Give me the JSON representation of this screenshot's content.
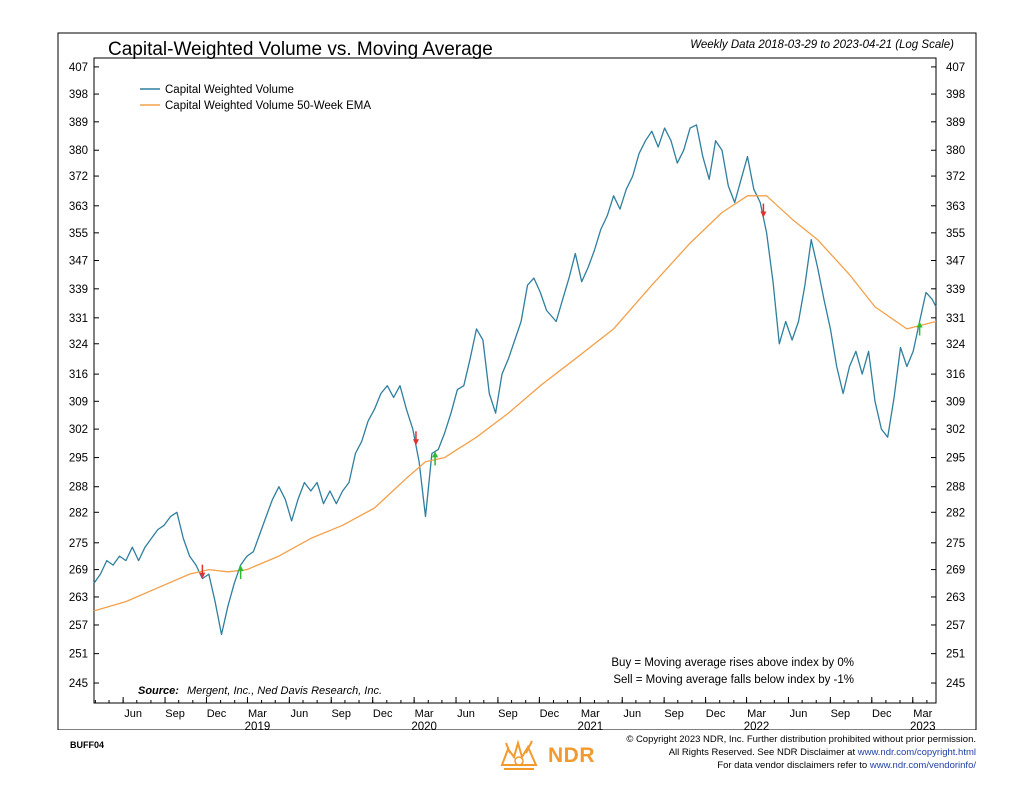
{
  "chart_data": {
    "type": "line",
    "title": "Capital-Weighted Volume vs. Moving Average",
    "subtitle": "Weekly Data 2018-03-29 to 2023-04-21 (Log Scale)",
    "scale": "log",
    "ylim": [
      241,
      410
    ],
    "x_range": [
      "2018-03-29",
      "2023-04-21"
    ],
    "y_ticks": [
      245,
      251,
      257,
      263,
      269,
      275,
      282,
      288,
      295,
      302,
      309,
      316,
      324,
      331,
      339,
      347,
      355,
      363,
      372,
      380,
      389,
      398,
      407
    ],
    "x_month_ticks": [
      {
        "date": "2018-06-01",
        "label": "Jun"
      },
      {
        "date": "2018-09-01",
        "label": "Sep"
      },
      {
        "date": "2018-12-01",
        "label": "Dec"
      },
      {
        "date": "2019-03-01",
        "label": "Mar"
      },
      {
        "date": "2019-06-01",
        "label": "Jun"
      },
      {
        "date": "2019-09-01",
        "label": "Sep"
      },
      {
        "date": "2019-12-01",
        "label": "Dec"
      },
      {
        "date": "2020-03-01",
        "label": "Mar"
      },
      {
        "date": "2020-06-01",
        "label": "Jun"
      },
      {
        "date": "2020-09-01",
        "label": "Sep"
      },
      {
        "date": "2020-12-01",
        "label": "Dec"
      },
      {
        "date": "2021-03-01",
        "label": "Mar"
      },
      {
        "date": "2021-06-01",
        "label": "Jun"
      },
      {
        "date": "2021-09-01",
        "label": "Sep"
      },
      {
        "date": "2021-12-01",
        "label": "Dec"
      },
      {
        "date": "2022-03-01",
        "label": "Mar"
      },
      {
        "date": "2022-06-01",
        "label": "Jun"
      },
      {
        "date": "2022-09-01",
        "label": "Sep"
      },
      {
        "date": "2022-12-01",
        "label": "Dec"
      },
      {
        "date": "2023-03-01",
        "label": "Mar"
      }
    ],
    "x_year_labels": [
      {
        "date": "2019-03-01",
        "label": "2019"
      },
      {
        "date": "2020-03-01",
        "label": "2020"
      },
      {
        "date": "2021-03-01",
        "label": "2021"
      },
      {
        "date": "2022-03-01",
        "label": "2022"
      },
      {
        "date": "2023-03-01",
        "label": "2023"
      }
    ],
    "series": [
      {
        "name": "Capital Weighted Volume",
        "color": "#2f7f9e",
        "points": [
          [
            "2018-03-29",
            266
          ],
          [
            "2018-04-12",
            268
          ],
          [
            "2018-04-26",
            271
          ],
          [
            "2018-05-10",
            270
          ],
          [
            "2018-05-24",
            272
          ],
          [
            "2018-06-07",
            271
          ],
          [
            "2018-06-21",
            274
          ],
          [
            "2018-07-05",
            271
          ],
          [
            "2018-07-19",
            274
          ],
          [
            "2018-08-02",
            276
          ],
          [
            "2018-08-16",
            278
          ],
          [
            "2018-08-30",
            279
          ],
          [
            "2018-09-13",
            281
          ],
          [
            "2018-09-27",
            282
          ],
          [
            "2018-10-11",
            276
          ],
          [
            "2018-10-25",
            272
          ],
          [
            "2018-11-08",
            270
          ],
          [
            "2018-11-22",
            267
          ],
          [
            "2018-12-06",
            268
          ],
          [
            "2018-12-20",
            262
          ],
          [
            "2019-01-03",
            255
          ],
          [
            "2019-01-17",
            261
          ],
          [
            "2019-01-31",
            266
          ],
          [
            "2019-02-14",
            270
          ],
          [
            "2019-02-28",
            272
          ],
          [
            "2019-03-14",
            273
          ],
          [
            "2019-03-28",
            277
          ],
          [
            "2019-04-11",
            281
          ],
          [
            "2019-04-25",
            285
          ],
          [
            "2019-05-09",
            288
          ],
          [
            "2019-05-23",
            285
          ],
          [
            "2019-06-06",
            280
          ],
          [
            "2019-06-20",
            285
          ],
          [
            "2019-07-04",
            289
          ],
          [
            "2019-07-18",
            287
          ],
          [
            "2019-08-01",
            289
          ],
          [
            "2019-08-15",
            284
          ],
          [
            "2019-08-29",
            287
          ],
          [
            "2019-09-12",
            284
          ],
          [
            "2019-09-26",
            287
          ],
          [
            "2019-10-10",
            289
          ],
          [
            "2019-10-24",
            296
          ],
          [
            "2019-11-07",
            299
          ],
          [
            "2019-11-21",
            304
          ],
          [
            "2019-12-05",
            307
          ],
          [
            "2019-12-19",
            311
          ],
          [
            "2020-01-02",
            313
          ],
          [
            "2020-01-16",
            310
          ],
          [
            "2020-01-30",
            313
          ],
          [
            "2020-02-13",
            307
          ],
          [
            "2020-02-27",
            302
          ],
          [
            "2020-03-12",
            294
          ],
          [
            "2020-03-26",
            281
          ],
          [
            "2020-04-09",
            296
          ],
          [
            "2020-04-23",
            297
          ],
          [
            "2020-05-07",
            301
          ],
          [
            "2020-05-21",
            306
          ],
          [
            "2020-06-04",
            312
          ],
          [
            "2020-06-18",
            313
          ],
          [
            "2020-07-02",
            320
          ],
          [
            "2020-07-16",
            328
          ],
          [
            "2020-07-30",
            325
          ],
          [
            "2020-08-13",
            311
          ],
          [
            "2020-08-27",
            306
          ],
          [
            "2020-09-10",
            316
          ],
          [
            "2020-09-24",
            320
          ],
          [
            "2020-10-08",
            325
          ],
          [
            "2020-10-22",
            330
          ],
          [
            "2020-11-05",
            340
          ],
          [
            "2020-11-19",
            342
          ],
          [
            "2020-12-03",
            338
          ],
          [
            "2020-12-17",
            333
          ],
          [
            "2021-01-07",
            330
          ],
          [
            "2021-01-21",
            336
          ],
          [
            "2021-02-04",
            342
          ],
          [
            "2021-02-18",
            349
          ],
          [
            "2021-03-04",
            341
          ],
          [
            "2021-03-18",
            345
          ],
          [
            "2021-04-01",
            350
          ],
          [
            "2021-04-15",
            356
          ],
          [
            "2021-04-29",
            360
          ],
          [
            "2021-05-13",
            366
          ],
          [
            "2021-05-27",
            362
          ],
          [
            "2021-06-10",
            368
          ],
          [
            "2021-06-24",
            372
          ],
          [
            "2021-07-08",
            379
          ],
          [
            "2021-07-22",
            383
          ],
          [
            "2021-08-05",
            386
          ],
          [
            "2021-08-19",
            381
          ],
          [
            "2021-09-02",
            387
          ],
          [
            "2021-09-16",
            383
          ],
          [
            "2021-09-30",
            376
          ],
          [
            "2021-10-14",
            380
          ],
          [
            "2021-10-28",
            387
          ],
          [
            "2021-11-11",
            388
          ],
          [
            "2021-11-25",
            378
          ],
          [
            "2021-12-09",
            371
          ],
          [
            "2021-12-23",
            383
          ],
          [
            "2022-01-06",
            380
          ],
          [
            "2022-01-20",
            369
          ],
          [
            "2022-02-03",
            364
          ],
          [
            "2022-02-17",
            371
          ],
          [
            "2022-03-03",
            378
          ],
          [
            "2022-03-17",
            368
          ],
          [
            "2022-03-31",
            364
          ],
          [
            "2022-04-14",
            355
          ],
          [
            "2022-04-28",
            341
          ],
          [
            "2022-05-12",
            324
          ],
          [
            "2022-05-26",
            330
          ],
          [
            "2022-06-09",
            325
          ],
          [
            "2022-06-23",
            330
          ],
          [
            "2022-07-07",
            340
          ],
          [
            "2022-07-21",
            353
          ],
          [
            "2022-08-04",
            345
          ],
          [
            "2022-08-18",
            336
          ],
          [
            "2022-09-01",
            328
          ],
          [
            "2022-09-15",
            318
          ],
          [
            "2022-09-29",
            311
          ],
          [
            "2022-10-13",
            318
          ],
          [
            "2022-10-27",
            322
          ],
          [
            "2022-11-10",
            316
          ],
          [
            "2022-11-24",
            322
          ],
          [
            "2022-12-08",
            309
          ],
          [
            "2022-12-22",
            302
          ],
          [
            "2023-01-05",
            300
          ],
          [
            "2023-01-19",
            310
          ],
          [
            "2023-02-02",
            323
          ],
          [
            "2023-02-16",
            318
          ],
          [
            "2023-03-02",
            322
          ],
          [
            "2023-03-16",
            330
          ],
          [
            "2023-03-30",
            338
          ],
          [
            "2023-04-13",
            336
          ],
          [
            "2023-04-21",
            334
          ]
        ]
      },
      {
        "name": "Capital Weighted Volume 50-Week EMA",
        "color": "#f4a04a",
        "points": [
          [
            "2018-03-29",
            260
          ],
          [
            "2018-06-07",
            262
          ],
          [
            "2018-08-16",
            265
          ],
          [
            "2018-10-25",
            268
          ],
          [
            "2018-12-06",
            269
          ],
          [
            "2019-01-17",
            268.5
          ],
          [
            "2019-02-28",
            269
          ],
          [
            "2019-05-09",
            272
          ],
          [
            "2019-07-18",
            276
          ],
          [
            "2019-09-26",
            279
          ],
          [
            "2019-12-05",
            283
          ],
          [
            "2020-02-13",
            290
          ],
          [
            "2020-03-26",
            294
          ],
          [
            "2020-05-07",
            295
          ],
          [
            "2020-07-16",
            300
          ],
          [
            "2020-09-24",
            306
          ],
          [
            "2020-12-03",
            313
          ],
          [
            "2021-02-18",
            320
          ],
          [
            "2021-05-13",
            328
          ],
          [
            "2021-08-05",
            340
          ],
          [
            "2021-10-28",
            352
          ],
          [
            "2022-01-06",
            361
          ],
          [
            "2022-03-03",
            366
          ],
          [
            "2022-04-14",
            366
          ],
          [
            "2022-06-09",
            359
          ],
          [
            "2022-08-04",
            353
          ],
          [
            "2022-10-13",
            343
          ],
          [
            "2022-12-08",
            334
          ],
          [
            "2023-02-16",
            328
          ],
          [
            "2023-04-21",
            330
          ]
        ]
      }
    ],
    "signals": [
      {
        "date": "2018-11-22",
        "type": "sell"
      },
      {
        "date": "2019-02-14",
        "type": "buy"
      },
      {
        "date": "2020-03-05",
        "type": "sell"
      },
      {
        "date": "2020-04-16",
        "type": "buy"
      },
      {
        "date": "2022-04-07",
        "type": "sell"
      },
      {
        "date": "2023-03-16",
        "type": "buy"
      }
    ],
    "legend_position": "top-left",
    "grid": false
  },
  "annotations": {
    "buy_rule": "Buy = Moving average rises above index by 0%",
    "sell_rule": "Sell = Moving average falls below index by -1%",
    "source_label": "Source:",
    "source_text": "Mergent, Inc., Ned Davis Research, Inc."
  },
  "footer": {
    "code": "BUFF04",
    "logo_text": "NDR",
    "copyright_line1": "© Copyright 2023 NDR, Inc. Further distribution prohibited without prior permission.",
    "copyright_line2_prefix": "All Rights Reserved. See NDR Disclaimer at ",
    "copyright_link1": "www.ndr.com/copyright.html",
    "copyright_line3_prefix": "For data vendor disclaimers refer to ",
    "copyright_link2": "www.ndr.com/vendorinfo/"
  },
  "colors": {
    "volume": "#2f7f9e",
    "ema": "#f4a04a",
    "sell_arrow": "#e03030",
    "buy_arrow": "#2dbb2d",
    "logo": "#f29a2e",
    "link": "#1f3fa6"
  }
}
